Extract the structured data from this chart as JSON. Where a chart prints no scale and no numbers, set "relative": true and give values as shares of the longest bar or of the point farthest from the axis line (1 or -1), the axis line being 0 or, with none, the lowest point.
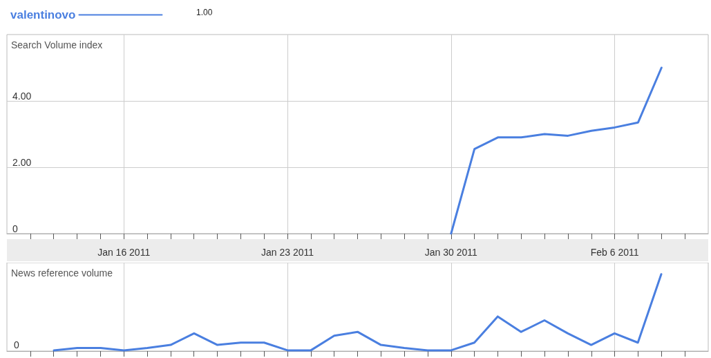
{
  "chart_data": [
    {
      "type": "line",
      "ylabel": "Search Volume index",
      "legend": "top left",
      "grid": true,
      "marker": "none",
      "line_style": "solid",
      "annotations": [
        "1.00"
      ],
      "series": [
        {
          "name": "valentinovo",
          "color": "#4a7fe0",
          "x": [
            "2011-01-30",
            "2011-01-31",
            "2011-02-01",
            "2011-02-02",
            "2011-02-03",
            "2011-02-04",
            "2011-02-05",
            "2011-02-06",
            "2011-02-07",
            "2011-02-08"
          ],
          "values": [
            0,
            2.55,
            2.9,
            2.9,
            3.0,
            2.95,
            3.1,
            3.2,
            3.35,
            5.0
          ]
        }
      ],
      "xlim": [
        "2011-01-11",
        "2011-02-10"
      ],
      "xticks": [
        {
          "value": "2011-01-12",
          "label": null
        },
        {
          "value": "2011-01-13",
          "label": null
        },
        {
          "value": "2011-01-14",
          "label": null
        },
        {
          "value": "2011-01-15",
          "label": null
        },
        {
          "value": "2011-01-16",
          "label": "Jan 16 2011"
        },
        {
          "value": "2011-01-17",
          "label": null
        },
        {
          "value": "2011-01-18",
          "label": null
        },
        {
          "value": "2011-01-19",
          "label": null
        },
        {
          "value": "2011-01-20",
          "label": null
        },
        {
          "value": "2011-01-21",
          "label": null
        },
        {
          "value": "2011-01-22",
          "label": null
        },
        {
          "value": "2011-01-23",
          "label": "Jan 23 2011"
        },
        {
          "value": "2011-01-24",
          "label": null
        },
        {
          "value": "2011-01-25",
          "label": null
        },
        {
          "value": "2011-01-26",
          "label": null
        },
        {
          "value": "2011-01-27",
          "label": null
        },
        {
          "value": "2011-01-28",
          "label": null
        },
        {
          "value": "2011-01-29",
          "label": null
        },
        {
          "value": "2011-01-30",
          "label": "Jan 30 2011"
        },
        {
          "value": "2011-01-31",
          "label": null
        },
        {
          "value": "2011-02-01",
          "label": null
        },
        {
          "value": "2011-02-02",
          "label": null
        },
        {
          "value": "2011-02-03",
          "label": null
        },
        {
          "value": "2011-02-04",
          "label": null
        },
        {
          "value": "2011-02-05",
          "label": null
        },
        {
          "value": "2011-02-06",
          "label": "Feb 6 2011"
        },
        {
          "value": "2011-02-07",
          "label": null
        },
        {
          "value": "2011-02-08",
          "label": null
        },
        {
          "value": "2011-02-09",
          "label": null
        }
      ],
      "ylim": [
        0,
        6
      ],
      "yticks": [
        {
          "value": 0,
          "label": "0"
        },
        {
          "value": 2,
          "label": "2.00"
        },
        {
          "value": 4,
          "label": "4.00"
        }
      ]
    },
    {
      "type": "line",
      "ylabel": "News reference volume",
      "relative": true,
      "grid": "x",
      "marker": "none",
      "line_style": "solid",
      "annotations": [
        "0"
      ],
      "categories": [
        null,
        null,
        null,
        null,
        null,
        null,
        null,
        null,
        null,
        null,
        null,
        null,
        null,
        null,
        null,
        null,
        null,
        null,
        null,
        null,
        null,
        null,
        null,
        null,
        null,
        null,
        null
      ],
      "series": [
        {
          "color": "#4a7fe0",
          "values": [
            0.01,
            0.04,
            0.04,
            0.01,
            0.04,
            0.08,
            0.23,
            0.08,
            0.11,
            0.11,
            0.01,
            0.01,
            0.2,
            0.25,
            0.08,
            0.04,
            0.01,
            0.01,
            0.11,
            0.45,
            0.25,
            0.4,
            0.23,
            0.08,
            0.23,
            0.11,
            1
          ]
        }
      ]
    }
  ]
}
